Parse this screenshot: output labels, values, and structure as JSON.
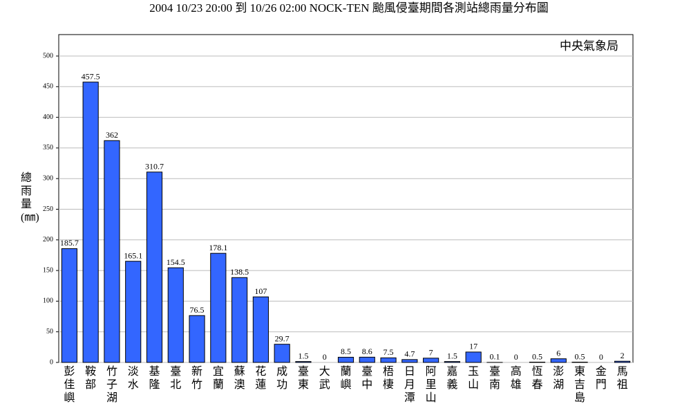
{
  "chart_data": {
    "type": "bar",
    "title": "2004 10/23 20:00 到 10/26 02:00 NOCK-TEN 颱風侵臺期間各測站總雨量分布圖",
    "annotation": "中央氣象局",
    "y_label": "總雨量(㎜)",
    "categories": [
      "彭佳嶼",
      "鞍部",
      "竹子湖",
      "淡水",
      "基隆",
      "臺北",
      "新竹",
      "宜蘭",
      "蘇澳",
      "花蓮",
      "成功",
      "臺東",
      "大武",
      "蘭嶼",
      "臺中",
      "梧棲",
      "日月潭",
      "阿里山",
      "嘉義",
      "玉山",
      "臺南",
      "高雄",
      "恆春",
      "澎湖",
      "東吉島",
      "金門",
      "馬祖"
    ],
    "values": [
      185.7,
      457.5,
      362,
      165.1,
      310.7,
      154.5,
      76.5,
      178.1,
      138.5,
      107,
      29.7,
      1.5,
      0,
      8.5,
      8.6,
      7.5,
      4.7,
      7,
      1.5,
      17,
      0.1,
      0,
      0.5,
      6,
      0.5,
      0,
      2
    ],
    "color": "#3366ff",
    "ylim": [
      0,
      535
    ],
    "yticks": [
      0,
      50,
      100,
      150,
      200,
      250,
      300,
      350,
      400,
      450,
      500
    ],
    "grid": true
  }
}
